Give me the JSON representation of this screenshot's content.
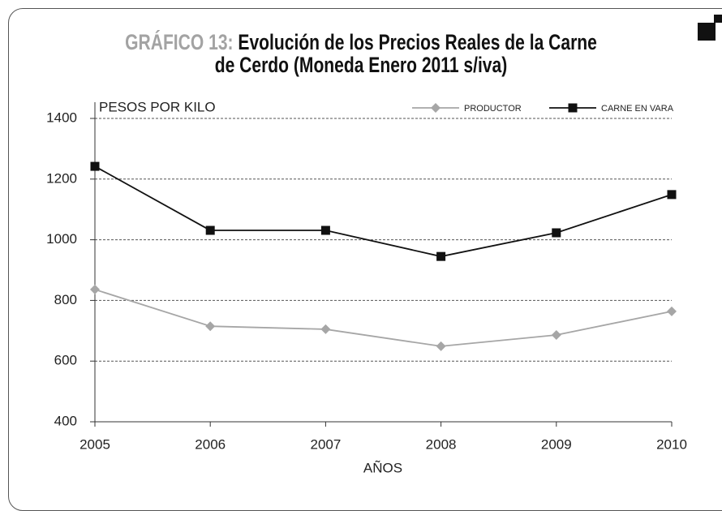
{
  "chart_data": {
    "type": "line",
    "title_prefix": "GRÁFICO 13:",
    "title": "Evolución de los Precios Reales de la Carne de Cerdo (Moneda Enero 2011 s/iva)",
    "y_label": "PESOS POR KILO",
    "x_label": "AÑOS",
    "x": [
      2005,
      2006,
      2007,
      2008,
      2009,
      2010
    ],
    "xlim": [
      2005,
      2010
    ],
    "xticks": [
      2005,
      2006,
      2007,
      2008,
      2009,
      2010
    ],
    "ylim": [
      400,
      1400
    ],
    "yticks": [
      400,
      600,
      800,
      1000,
      1200,
      1400
    ],
    "grid": true,
    "legend": "top-right",
    "series": [
      {
        "name": "PRODUCTOR",
        "color": "#a6a6a6",
        "marker": "diamond",
        "values": [
          836,
          715,
          705,
          649,
          686,
          764
        ]
      },
      {
        "name": "CARNE EN VARA",
        "color": "#111111",
        "marker": "square",
        "values": [
          1242,
          1031,
          1031,
          945,
          1023,
          1149
        ]
      }
    ]
  }
}
